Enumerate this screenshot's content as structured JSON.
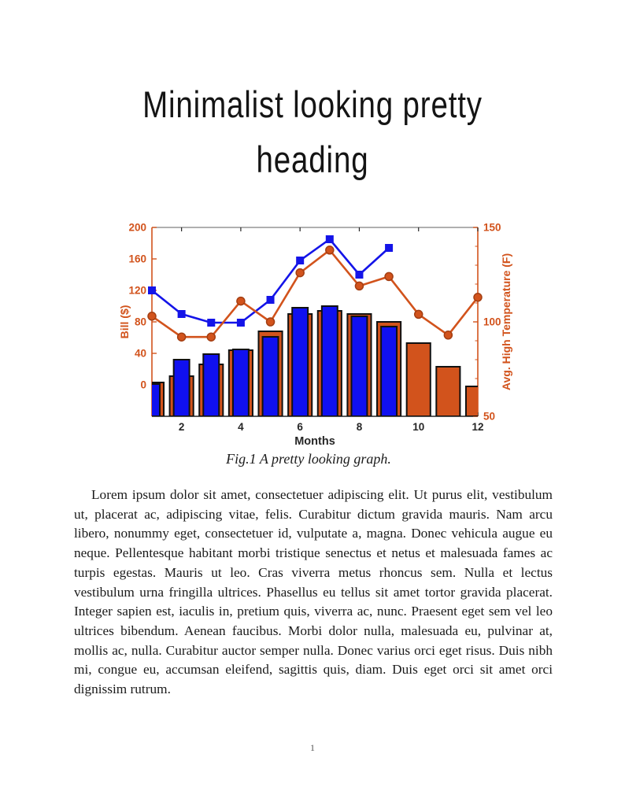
{
  "page": {
    "heading_lines": [
      "Minimalist looking pretty",
      "heading"
    ],
    "heading_full": "Minimalist looking pretty heading",
    "caption": "Fig.1 A pretty looking graph.",
    "body": "Lorem ipsum dolor sit amet, consectetuer adipiscing elit. Ut purus elit, vestibulum ut, placerat ac, adipiscing vitae, felis. Curabitur dictum gravida mauris. Nam arcu libero, nonummy eget, consectetuer id, vulputate a, magna. Donec vehicula augue eu neque. Pellentesque habitant morbi tristique senectus et netus et malesuada fames ac turpis egestas. Mauris ut leo. Cras viverra metus rhoncus sem. Nulla et lectus vestibulum urna fringilla ultrices. Phasellus eu tellus sit amet tortor gravida placerat. Integer sapien est, iaculis in, pretium quis, viverra ac, nunc. Praesent eget sem vel leo ultrices bibendum. Aenean faucibus. Morbi dolor nulla, malesuada eu, pulvinar at, mollis ac, nulla. Curabitur auctor semper nulla. Donec varius orci eget risus. Duis nibh mi, congue eu, accumsan eleifend, sagittis quis, diam. Duis eget orci sit amet orci dignissim rutrum.",
    "page_number": "1"
  },
  "chart_data": {
    "type": "bar",
    "subtype": "dual-axis bar and line combo",
    "title": "",
    "x": [
      1,
      2,
      3,
      4,
      5,
      6,
      7,
      8,
      9,
      10,
      11,
      12
    ],
    "xlabel": "Months",
    "xlim": [
      1,
      12
    ],
    "xticks": [
      2,
      4,
      6,
      8,
      10,
      12
    ],
    "left_axis": {
      "label": "Bill ($)",
      "lim": [
        -40,
        200
      ],
      "ticks": [
        0,
        40,
        80,
        120,
        160,
        200
      ],
      "color": "#D2531C"
    },
    "right_axis": {
      "label": "Avg. High Temperature (F)",
      "lim": [
        50,
        150
      ],
      "ticks": [
        50,
        100,
        150
      ],
      "minor_step": 10,
      "color": "#D2531C"
    },
    "series": [
      {
        "name": "temperature-bars",
        "style": "bar",
        "axis": "left",
        "color": "#D2531C",
        "edge": "#111111",
        "width_frac": 0.8,
        "values": [
          3,
          11,
          26,
          44,
          68,
          90,
          94,
          90,
          80,
          53,
          23,
          -2
        ]
      },
      {
        "name": "bill-bars",
        "style": "bar",
        "axis": "left",
        "color": "#1010F0",
        "edge": "#111111",
        "width_frac": 0.53,
        "values": [
          1,
          32,
          39,
          45,
          61,
          98,
          100,
          87,
          74,
          null,
          null,
          null
        ]
      },
      {
        "name": "bill-line",
        "style": "line",
        "axis": "left",
        "color": "#1414E8",
        "marker": "square",
        "marker_edge": "#1414E8",
        "values": [
          120,
          90,
          79,
          79,
          108,
          158,
          185,
          140,
          174,
          null,
          null,
          null
        ]
      },
      {
        "name": "temperature-line",
        "style": "line",
        "axis": "right",
        "color": "#D2531C",
        "marker": "circle",
        "marker_edge": "#A33E12",
        "values": [
          103,
          92,
          92,
          111,
          100,
          126,
          138,
          119,
          124,
          104,
          93,
          113
        ]
      }
    ],
    "frame": {
      "top_color": "#7F7F7F",
      "bottom_color": "#262626",
      "x_tick_color": "#262626"
    },
    "legend": "none",
    "grid": false
  }
}
